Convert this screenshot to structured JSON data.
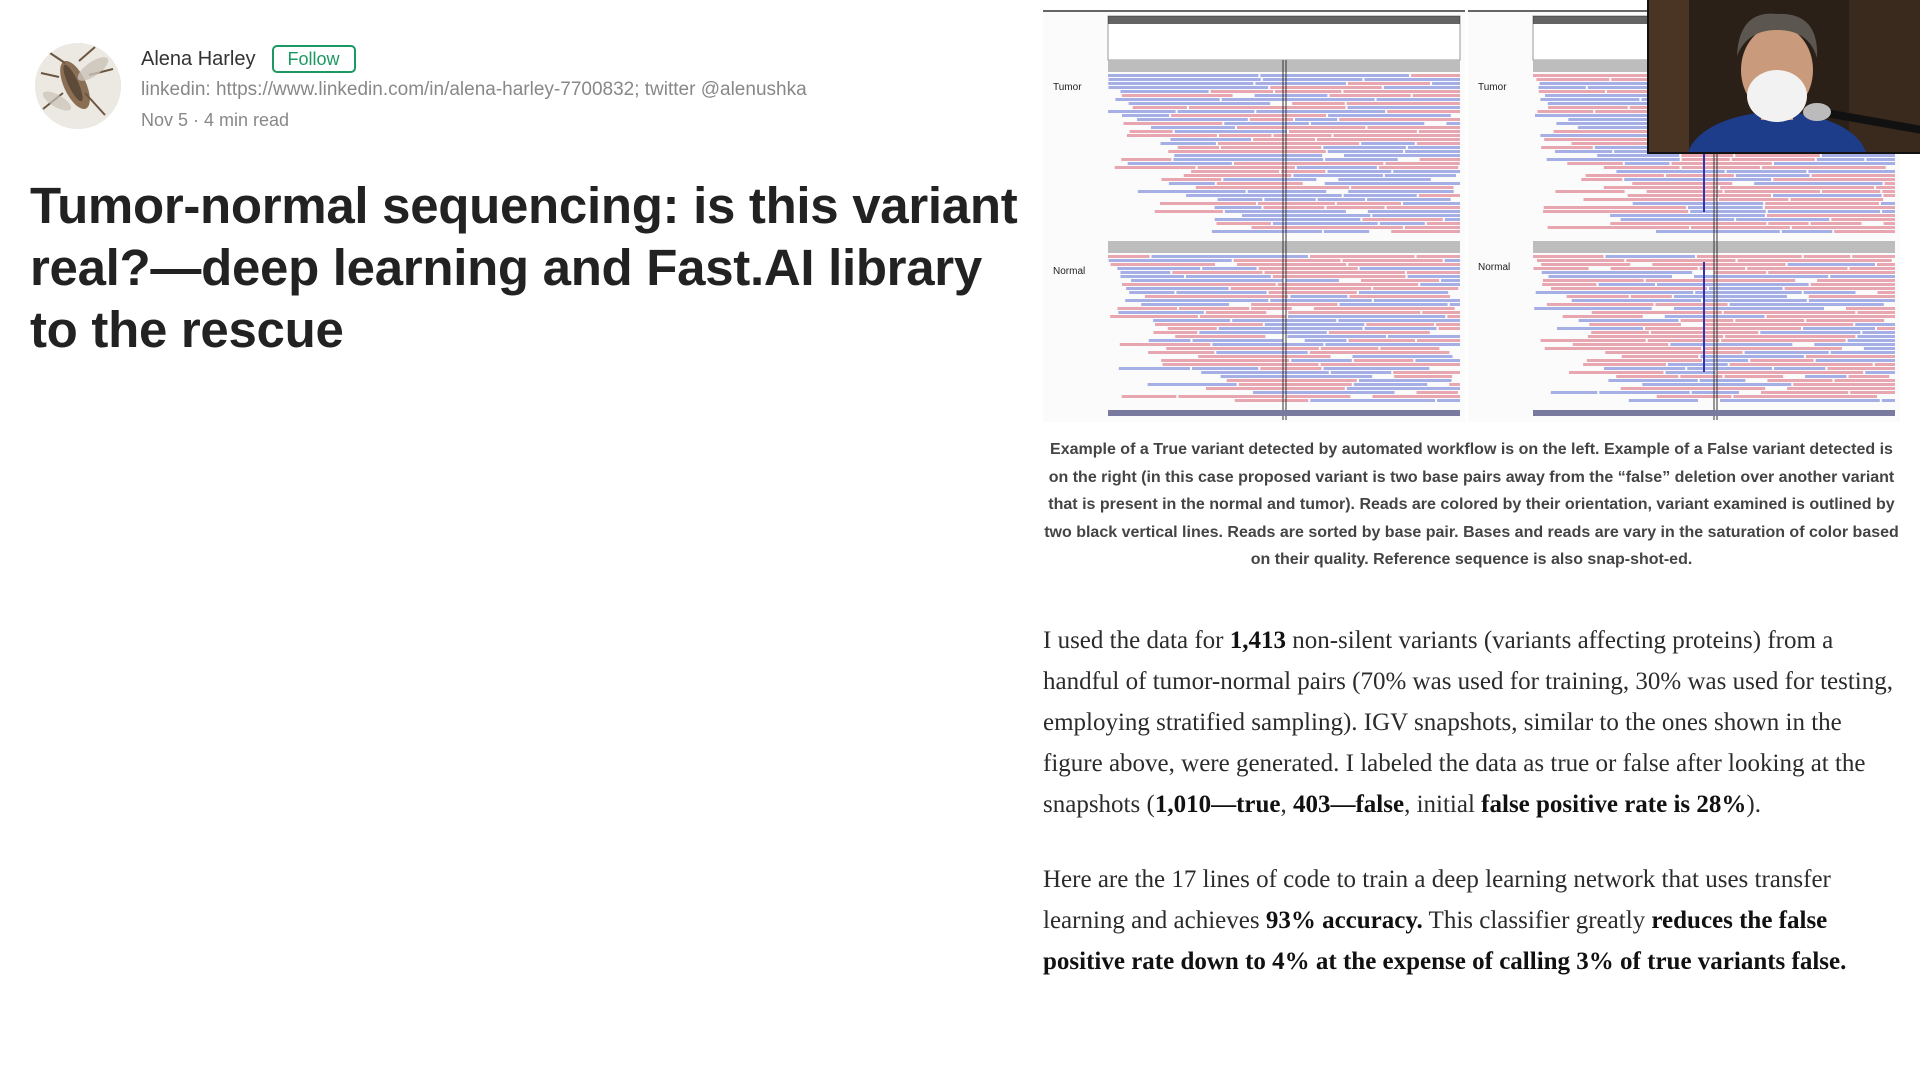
{
  "author": {
    "name": "Alena Harley",
    "follow_label": "Follow",
    "social": "linkedin: https://www.linkedin.com/in/alena-harley-7700832; twitter @alenushka",
    "date_read": "Nov 5 · 4 min read"
  },
  "article": {
    "title": "Tumor-normal sequencing: is this variant real?—deep learning and Fast.AI library to the rescue"
  },
  "figure": {
    "panel_left": {
      "track_top": "Tumor",
      "track_bottom": "Normal"
    },
    "panel_right": {
      "track_top": "Tumor",
      "track_bottom": "Normal"
    },
    "caption": "Example of a True variant detected by automated workflow is on the left. Example of a False variant detected is on the right (in this case proposed variant is two base pairs away from the “false” deletion over another variant that is present in the normal and tumor). Reads are colored by their orientation, variant examined is outlined by two black vertical lines. Reads are sorted by base pair. Bases and reads are vary in the saturation of color based on their quality. Reference sequence is also snap-shot-ed.",
    "colors": {
      "forward_read": "#e8a7b0",
      "reverse_read": "#a6aee6",
      "coverage": "#bdbdbd"
    }
  },
  "body": {
    "p1": {
      "t1": "I used the data for ",
      "b1": "1,413",
      "t2": " non-silent variants (variants affecting proteins) from a handful of tumor-normal pairs (70% was used for training, 30% was used for testing, employing stratified sampling). IGV snapshots, similar to the ones shown in the figure above, were generated. I labeled the data as true or false after looking at the snapshots (",
      "b2": "1,010—true",
      "t3": ", ",
      "b3": "403—false",
      "t4": ", initial ",
      "b4": "false positive rate is 28%",
      "t5": ")."
    },
    "p2": {
      "t1": "Here are the 17 lines of code to train a deep learning network that uses transfer learning and achieves ",
      "b1": "93% accuracy.",
      "t2": " This classifier greatly ",
      "b2": "reduces the false positive rate down to 4% at the expense of calling 3% of true variants false."
    }
  }
}
